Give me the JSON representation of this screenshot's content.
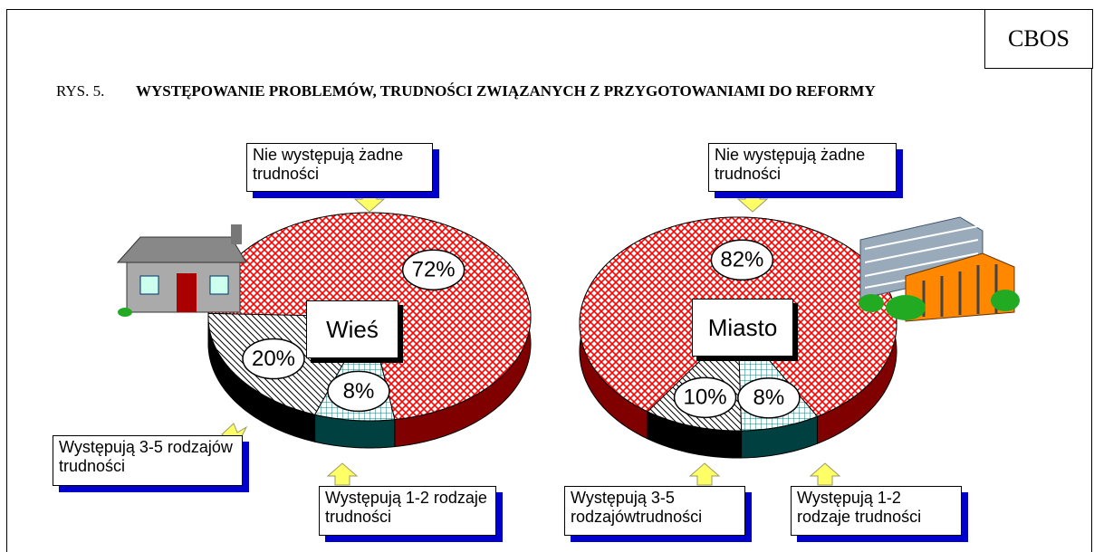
{
  "header": {
    "source": "CBOS",
    "figure": "RYS. 5.",
    "title": "WYSTĘPOWANIE PROBLEMÓW, TRUDNOŚCI ZWIĄZANYCH Z PRZYGOTOWANIAMI DO REFORMY"
  },
  "chart_data": [
    {
      "type": "pie",
      "title": "Wieś",
      "categories": [
        "Nie występują żadne trudności",
        "Występują 3-5 rodzajów trudności",
        "Występują 1-2 rodzaje trudności"
      ],
      "values": [
        72,
        20,
        8
      ],
      "value_labels": [
        "72%",
        "20%",
        "8%"
      ],
      "colors": [
        "#ff0000",
        "#000000",
        "#008080"
      ]
    },
    {
      "type": "pie",
      "title": "Miasto",
      "categories": [
        "Nie występują żadne trudności",
        "Występują 3-5 rodzajówtrudności",
        "Występują 1-2 rodzaje trudności"
      ],
      "values": [
        82,
        10,
        8
      ],
      "value_labels": [
        "82%",
        "10%",
        "8%"
      ],
      "colors": [
        "#ff0000",
        "#000000",
        "#008080"
      ]
    }
  ]
}
